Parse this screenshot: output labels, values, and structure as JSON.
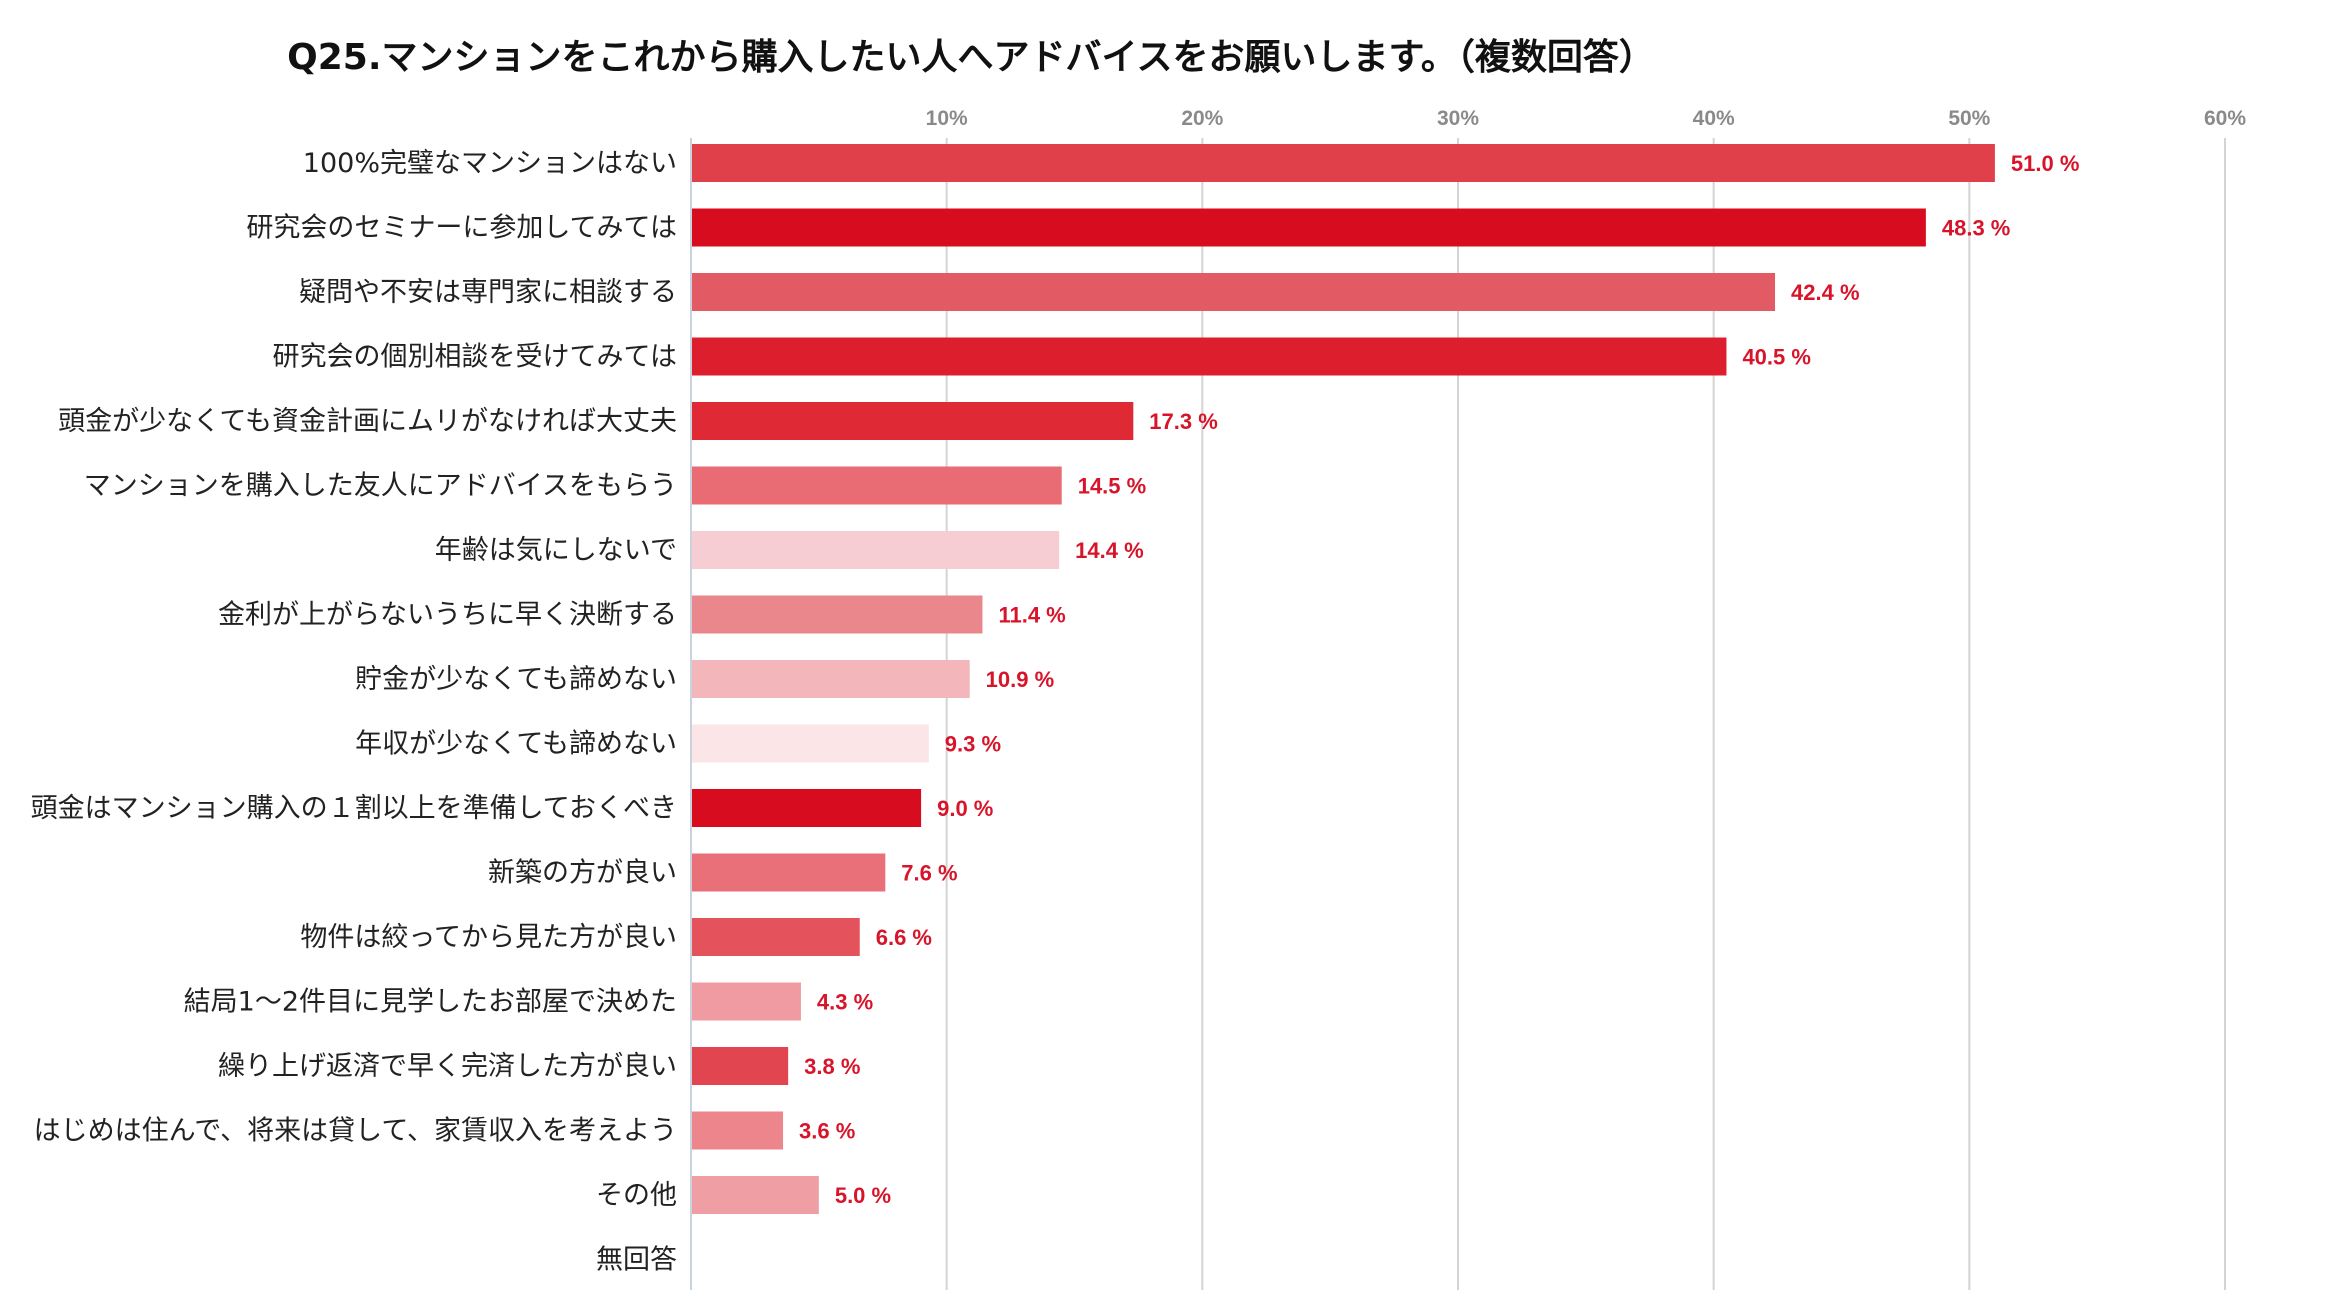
{
  "chart_data": {
    "type": "bar",
    "orientation": "horizontal",
    "title": "Q25.マンションをこれから購入したい人へアドバイスをお願いします。（複数回答）",
    "xlabel": "",
    "ylabel": "",
    "xlim": [
      0,
      60
    ],
    "ticks": [
      10,
      20,
      30,
      40,
      50,
      60
    ],
    "tick_labels": [
      "10%",
      "20%",
      "30%",
      "40%",
      "50%",
      "60%"
    ],
    "grid": true,
    "value_suffix": " %",
    "categories": [
      "100%完璧なマンションはない",
      "研究会のセミナーに参加してみては",
      "疑問や不安は専門家に相談する",
      "研究会の個別相談を受けてみては",
      "頭金が少なくても資金計画にムリがなければ大丈夫",
      "マンションを購入した友人にアドバイスをもらう",
      "年齢は気にしないで",
      "金利が上がらないうちに早く決断する",
      "貯金が少なくても諦めない",
      "年収が少なくても諦めない",
      "頭金はマンション購入の１割以上を準備しておくべき",
      "新築の方が良い",
      "物件は絞ってから見た方が良い",
      "結局1～2件目に見学したお部屋で決めた",
      "繰り上げ返済で早く完済した方が良い",
      "はじめは住んで、将来は貸して、家賃収入を考えよう",
      "その他",
      "無回答"
    ],
    "values": [
      51.0,
      48.3,
      42.4,
      40.5,
      17.3,
      14.5,
      14.4,
      11.4,
      10.9,
      9.3,
      9.0,
      7.6,
      6.6,
      4.3,
      3.8,
      3.6,
      5.0,
      null
    ],
    "value_labels": [
      "51.0 %",
      "48.3 %",
      "42.4 %",
      "40.5 %",
      "17.3 %",
      "14.5 %",
      "14.4 %",
      "11.4 %",
      "10.9 %",
      "9.3 %",
      "9.0 %",
      "7.6 %",
      "6.6 %",
      "4.3 %",
      "3.8 %",
      "3.6 %",
      "5.0 %",
      ""
    ],
    "colors": [
      "#e0404a",
      "#d70c1e",
      "#e25a64",
      "#dd1e2c",
      "#df2a36",
      "#e96c74",
      "#f6cdd2",
      "#ea878d",
      "#f2b6bb",
      "#fbe5e7",
      "#d70c1e",
      "#e97078",
      "#e4525c",
      "#ef9ba1",
      "#e04550",
      "#ec858c",
      "#ef9ea4",
      "#ffffff"
    ]
  }
}
